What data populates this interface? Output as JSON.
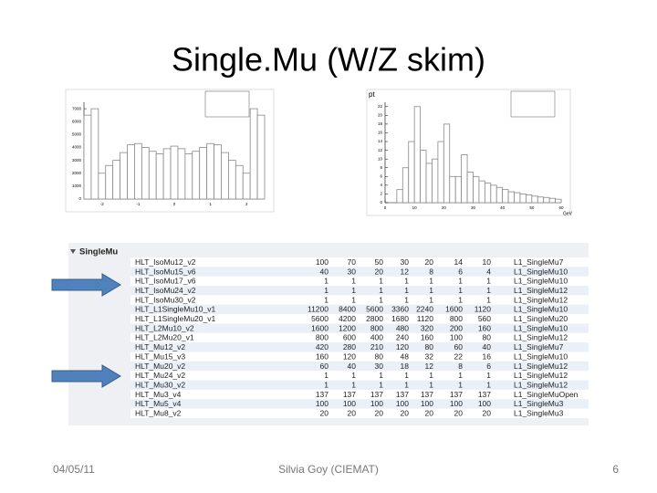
{
  "slide": {
    "title": "Single.Mu (W/Z skim)",
    "date": "04/05/11",
    "author": "Silvia Goy (CIEMAT)",
    "page": "6"
  },
  "chart_data": [
    {
      "type": "histogram",
      "bins": [
        -2.5,
        -2.3,
        -2.1,
        -1.9,
        -1.7,
        -1.5,
        -1.3,
        -1.1,
        -0.9,
        -0.7,
        -0.5,
        -0.3,
        -0.1,
        0.1,
        0.3,
        0.5,
        0.7,
        0.9,
        1.1,
        1.3,
        1.5,
        1.7,
        1.9,
        2.1,
        2.3,
        2.5
      ],
      "values": [
        6500,
        7000,
        2000,
        2600,
        3000,
        3600,
        4200,
        4300,
        4000,
        3700,
        3500,
        3900,
        4100,
        3900,
        3500,
        3700,
        4000,
        4300,
        4200,
        3600,
        3000,
        2600,
        2000,
        7000,
        6500
      ],
      "color": "#888888",
      "xlim": [
        -2.5,
        2.5
      ],
      "xticks": [
        -2,
        -1,
        0,
        1,
        2
      ],
      "ylim": [
        0,
        7500
      ],
      "yticks": [
        0,
        1000,
        2000,
        3000,
        4000,
        5000,
        6000,
        7000
      ]
    },
    {
      "type": "histogram",
      "title": "pt",
      "xlabel": "GeV",
      "bins": [
        0,
        2,
        4,
        6,
        8,
        10,
        12,
        14,
        16,
        18,
        20,
        22,
        24,
        26,
        28,
        30,
        32,
        34,
        36,
        38,
        40,
        42,
        44,
        46,
        48,
        50,
        52,
        54,
        56,
        58,
        60
      ],
      "values": [
        0,
        0,
        3,
        8,
        14,
        22,
        12,
        9,
        10,
        14,
        18,
        6,
        6,
        11,
        7,
        6,
        5,
        4.5,
        4,
        3.5,
        3,
        2.5,
        2.3,
        2,
        1.8,
        1.5,
        1.3,
        1.2,
        1,
        0.8
      ],
      "color": "#888888",
      "xlim": [
        0,
        60
      ],
      "xticks": [
        0,
        10,
        20,
        30,
        40,
        50,
        60
      ],
      "ylim": [
        0,
        23
      ],
      "yticks": [
        0,
        2,
        4,
        6,
        8,
        10,
        12,
        14,
        16,
        18,
        20,
        22
      ]
    }
  ],
  "table": {
    "group": "SingleMu",
    "rows": [
      [
        "HLT_IsoMu12_v2",
        "100",
        "70",
        "50",
        "30",
        "20",
        "14",
        "10",
        "L1_SingleMu7"
      ],
      [
        "HLT_IsoMu15_v6",
        "40",
        "30",
        "20",
        "12",
        "8",
        "6",
        "4",
        "L1_SingleMu10"
      ],
      [
        "HLT_IsoMu17_v6",
        "1",
        "1",
        "1",
        "1",
        "1",
        "1",
        "1",
        "L1_SingleMu10"
      ],
      [
        "HLT_IsoMu24_v2",
        "1",
        "1",
        "1",
        "1",
        "1",
        "1",
        "1",
        "L1_SingleMu12"
      ],
      [
        "HLT_IsoMu30_v2",
        "1",
        "1",
        "1",
        "1",
        "1",
        "1",
        "1",
        "L1_SingleMu12"
      ],
      [
        "HLT_L1SingleMu10_v1",
        "11200",
        "8400",
        "5600",
        "3360",
        "2240",
        "1600",
        "1120",
        "L1_SingleMu10"
      ],
      [
        "HLT_L1SingleMu20_v1",
        "5600",
        "4200",
        "2800",
        "1680",
        "1120",
        "800",
        "560",
        "L1_SingleMu20"
      ],
      [
        "HLT_L2Mu10_v2",
        "1600",
        "1200",
        "800",
        "480",
        "320",
        "200",
        "160",
        "L1_SingleMu10"
      ],
      [
        "HLT_L2Mu20_v1",
        "800",
        "600",
        "400",
        "240",
        "160",
        "100",
        "80",
        "L1_SingleMu12"
      ],
      [
        "HLT_Mu12_v2",
        "420",
        "280",
        "210",
        "120",
        "80",
        "60",
        "40",
        "L1_SingleMu7"
      ],
      [
        "HLT_Mu15_v3",
        "160",
        "120",
        "80",
        "48",
        "32",
        "22",
        "16",
        "L1_SingleMu10"
      ],
      [
        "HLT_Mu20_v2",
        "60",
        "40",
        "30",
        "18",
        "12",
        "8",
        "6",
        "L1_SingleMu12"
      ],
      [
        "HLT_Mu24_v2",
        "1",
        "1",
        "1",
        "1",
        "1",
        "1",
        "1",
        "L1_SingleMu12"
      ],
      [
        "HLT_Mu30_v2",
        "1",
        "1",
        "1",
        "1",
        "1",
        "1",
        "1",
        "L1_SingleMu12"
      ],
      [
        "HLT_Mu3_v4",
        "137",
        "137",
        "137",
        "137",
        "137",
        "137",
        "137",
        "L1_SingleMuOpen"
      ],
      [
        "HLT_Mu5_v4",
        "100",
        "100",
        "100",
        "100",
        "100",
        "100",
        "100",
        "L1_SingleMu3"
      ],
      [
        "HLT_Mu8_v2",
        "20",
        "20",
        "20",
        "20",
        "20",
        "20",
        "20",
        "L1_SingleMu3"
      ]
    ]
  }
}
